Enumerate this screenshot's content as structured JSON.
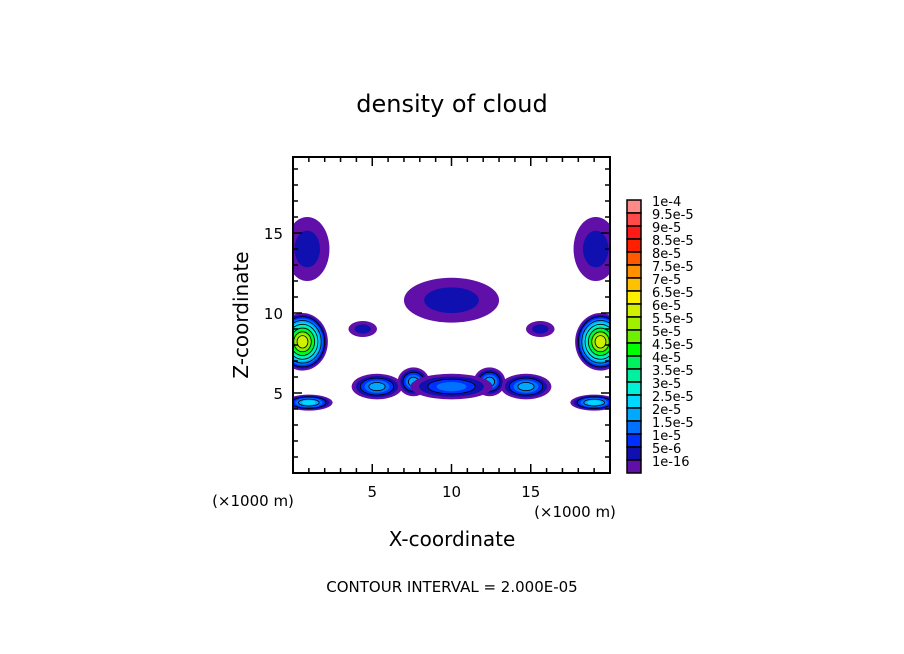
{
  "chart_data": {
    "type": "heatmap",
    "title": "density of cloud",
    "xlabel": "X-coordinate",
    "ylabel": "Z-coordinate",
    "x_unit": "(×1000 m)",
    "y_unit": "(×1000 m)",
    "xlim": [
      0,
      20
    ],
    "ylim": [
      0,
      19.75
    ],
    "x_ticks": [
      5,
      10,
      15
    ],
    "y_ticks": [
      5,
      10,
      15
    ],
    "footer": "CONTOUR INTERVAL = 2.000E-05",
    "colorbar": {
      "labels": [
        "1e-4",
        "9.5e-5",
        "9e-5",
        "8.5e-5",
        "8e-5",
        "7.5e-5",
        "7e-5",
        "6.5e-5",
        "6e-5",
        "5.5e-5",
        "5e-5",
        "4.5e-5",
        "4e-5",
        "3.5e-5",
        "3e-5",
        "2.5e-5",
        "2e-5",
        "1.5e-5",
        "1e-5",
        "5e-6",
        "1e-16"
      ],
      "colors": [
        "#ff8a8a",
        "#ff4a4a",
        "#ff1a1a",
        "#ff2000",
        "#ff5a00",
        "#ff9000",
        "#ffc000",
        "#fff000",
        "#d0f000",
        "#a0f000",
        "#70f000",
        "#00ff00",
        "#00f060",
        "#00f0a0",
        "#00f0d8",
        "#00d8ff",
        "#00a8ff",
        "#0070ff",
        "#0030ff",
        "#1010b0",
        "#6010a8"
      ]
    },
    "features": [
      {
        "x": 0.9,
        "z": 14.0,
        "rx": 1.4,
        "rz": 2.0,
        "peak": "5e-6"
      },
      {
        "x": 19.1,
        "z": 14.0,
        "rx": 1.4,
        "rz": 2.0,
        "peak": "5e-6"
      },
      {
        "x": 10.0,
        "z": 10.8,
        "rx": 3.0,
        "rz": 1.4,
        "peak": "5e-6"
      },
      {
        "x": 4.4,
        "z": 9.0,
        "rx": 0.9,
        "rz": 0.5,
        "peak": "5e-6"
      },
      {
        "x": 15.6,
        "z": 9.0,
        "rx": 0.9,
        "rz": 0.5,
        "peak": "5e-6"
      },
      {
        "x": 0.6,
        "z": 8.2,
        "rx": 1.6,
        "rz": 1.8,
        "peak": "6e-5"
      },
      {
        "x": 19.4,
        "z": 8.2,
        "rx": 1.6,
        "rz": 1.8,
        "peak": "6e-5"
      },
      {
        "x": 5.3,
        "z": 5.4,
        "rx": 1.6,
        "rz": 0.8,
        "peak": "2e-5"
      },
      {
        "x": 14.7,
        "z": 5.4,
        "rx": 1.6,
        "rz": 0.8,
        "peak": "2e-5"
      },
      {
        "x": 7.6,
        "z": 5.7,
        "rx": 1.0,
        "rz": 0.9,
        "peak": "2e-5"
      },
      {
        "x": 12.4,
        "z": 5.7,
        "rx": 1.0,
        "rz": 0.9,
        "peak": "2e-5"
      },
      {
        "x": 10.0,
        "z": 5.4,
        "rx": 2.6,
        "rz": 0.8,
        "peak": "1.5e-5"
      },
      {
        "x": 1.0,
        "z": 4.4,
        "rx": 1.5,
        "rz": 0.5,
        "peak": "2.5e-5"
      },
      {
        "x": 19.0,
        "z": 4.4,
        "rx": 1.5,
        "rz": 0.5,
        "peak": "2.5e-5"
      }
    ]
  }
}
